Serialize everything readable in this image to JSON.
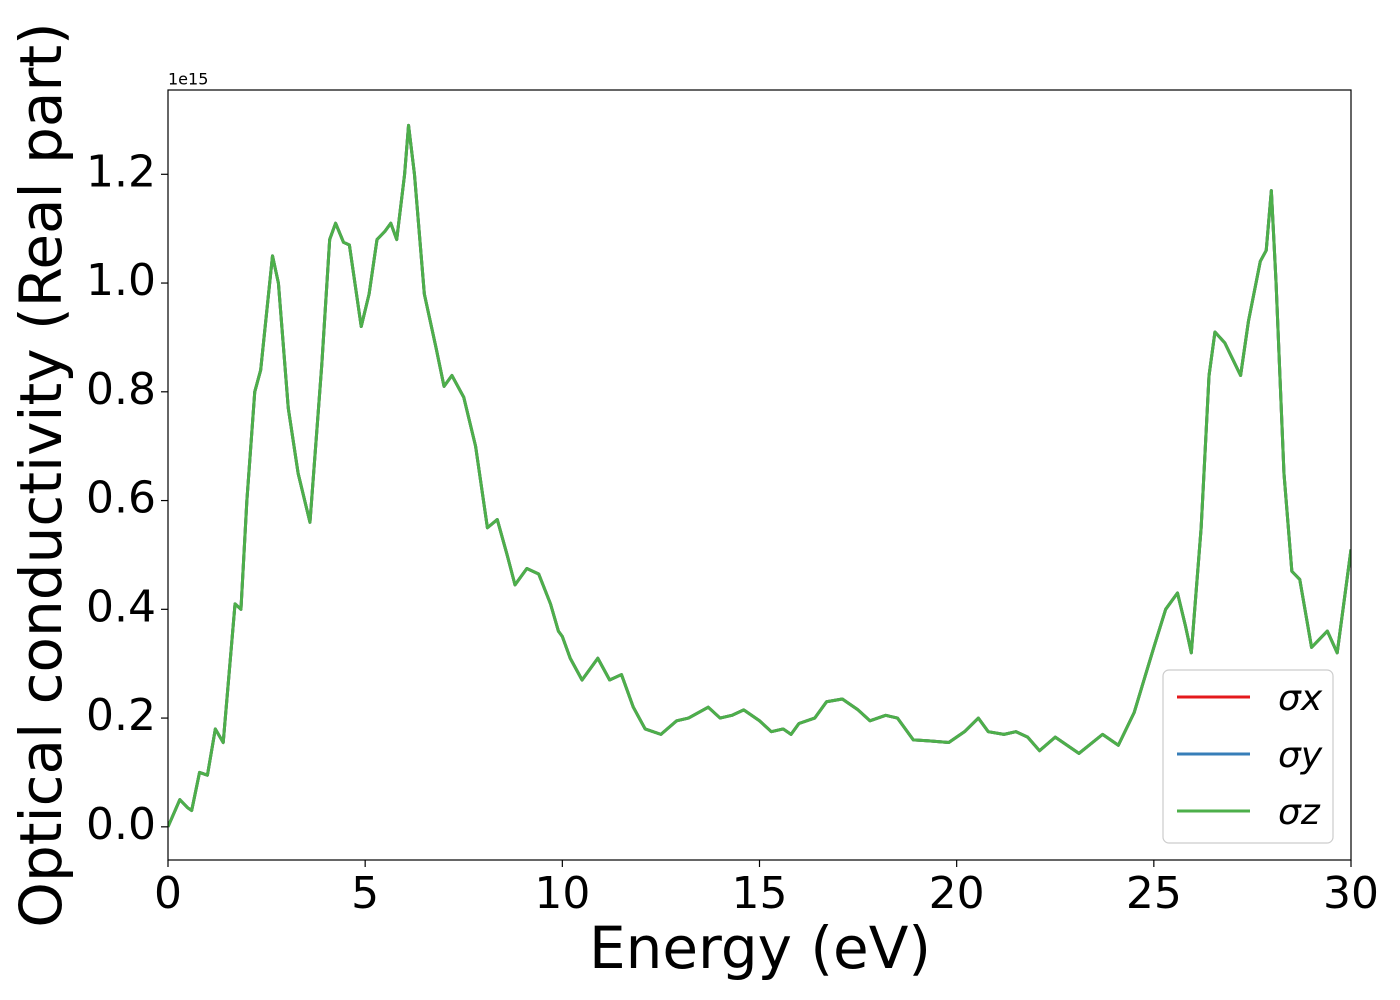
{
  "chart_data": {
    "type": "line",
    "y_label": "Optical conductivity (Real part)",
    "x_label": "Energy (eV)",
    "y_offset_label": "1e15",
    "x": [
      0,
      0.3,
      0.5,
      0.6,
      0.8,
      1.0,
      1.2,
      1.4,
      1.7,
      1.85,
      2.0,
      2.2,
      2.35,
      2.65,
      2.8,
      3.05,
      3.3,
      3.6,
      3.9,
      4.1,
      4.25,
      4.45,
      4.6,
      4.9,
      5.1,
      5.3,
      5.5,
      5.65,
      5.8,
      6.0,
      6.1,
      6.25,
      6.5,
      6.8,
      7.0,
      7.2,
      7.5,
      7.8,
      8.1,
      8.35,
      8.6,
      8.8,
      9.1,
      9.4,
      9.7,
      9.9,
      10.0,
      10.2,
      10.5,
      10.9,
      11.2,
      11.5,
      11.8,
      12.1,
      12.5,
      12.9,
      13.2,
      13.7,
      14.0,
      14.3,
      14.6,
      15.0,
      15.3,
      15.6,
      15.8,
      16.0,
      16.4,
      16.7,
      17.1,
      17.5,
      17.8,
      18.2,
      18.5,
      18.9,
      19.3,
      19.8,
      20.2,
      20.55,
      20.8,
      21.2,
      21.5,
      21.8,
      22.1,
      22.5,
      22.8,
      23.1,
      23.7,
      24.1,
      24.5,
      25.0,
      25.3,
      25.6,
      25.8,
      25.95,
      26.2,
      26.4,
      26.55,
      26.8,
      27.0,
      27.2,
      27.4,
      27.7,
      27.85,
      27.98,
      28.1,
      28.3,
      28.5,
      28.7,
      29.0,
      29.4,
      29.65,
      30.0
    ],
    "series": [
      {
        "name": "σx",
        "color": "#e41a1c",
        "values": [
          0.0,
          0.05,
          0.035,
          0.03,
          0.1,
          0.095,
          0.18,
          0.155,
          0.41,
          0.4,
          0.6,
          0.8,
          0.84,
          1.05,
          1.0,
          0.77,
          0.65,
          0.56,
          0.85,
          1.08,
          1.11,
          1.075,
          1.07,
          0.92,
          0.98,
          1.08,
          1.095,
          1.11,
          1.08,
          1.2,
          1.29,
          1.2,
          0.98,
          0.88,
          0.81,
          0.83,
          0.79,
          0.7,
          0.55,
          0.565,
          0.5,
          0.445,
          0.475,
          0.465,
          0.41,
          0.36,
          0.35,
          0.31,
          0.27,
          0.31,
          0.27,
          0.28,
          0.22,
          0.18,
          0.17,
          0.195,
          0.2,
          0.22,
          0.2,
          0.205,
          0.215,
          0.195,
          0.175,
          0.18,
          0.17,
          0.19,
          0.2,
          0.23,
          0.235,
          0.215,
          0.195,
          0.205,
          0.2,
          0.16,
          0.158,
          0.155,
          0.175,
          0.2,
          0.175,
          0.17,
          0.175,
          0.165,
          0.14,
          0.165,
          0.15,
          0.135,
          0.17,
          0.15,
          0.21,
          0.33,
          0.4,
          0.43,
          0.37,
          0.32,
          0.55,
          0.83,
          0.91,
          0.89,
          0.86,
          0.83,
          0.93,
          1.04,
          1.06,
          1.17,
          1.0,
          0.65,
          0.47,
          0.455,
          0.33,
          0.36,
          0.32,
          0.51
        ]
      },
      {
        "name": "σy",
        "color": "#377eb8",
        "values": [
          0.0,
          0.05,
          0.035,
          0.03,
          0.1,
          0.095,
          0.18,
          0.155,
          0.41,
          0.4,
          0.6,
          0.8,
          0.84,
          1.05,
          1.0,
          0.77,
          0.65,
          0.56,
          0.85,
          1.08,
          1.11,
          1.075,
          1.07,
          0.92,
          0.98,
          1.08,
          1.095,
          1.11,
          1.08,
          1.2,
          1.29,
          1.2,
          0.98,
          0.88,
          0.81,
          0.83,
          0.79,
          0.7,
          0.55,
          0.565,
          0.5,
          0.445,
          0.475,
          0.465,
          0.41,
          0.36,
          0.35,
          0.31,
          0.27,
          0.31,
          0.27,
          0.28,
          0.22,
          0.18,
          0.17,
          0.195,
          0.2,
          0.22,
          0.2,
          0.205,
          0.215,
          0.195,
          0.175,
          0.18,
          0.17,
          0.19,
          0.2,
          0.23,
          0.235,
          0.215,
          0.195,
          0.205,
          0.2,
          0.16,
          0.158,
          0.155,
          0.175,
          0.2,
          0.175,
          0.17,
          0.175,
          0.165,
          0.14,
          0.165,
          0.15,
          0.135,
          0.17,
          0.15,
          0.21,
          0.33,
          0.4,
          0.43,
          0.37,
          0.32,
          0.55,
          0.83,
          0.91,
          0.89,
          0.86,
          0.83,
          0.93,
          1.04,
          1.06,
          1.17,
          1.0,
          0.65,
          0.47,
          0.455,
          0.33,
          0.36,
          0.32,
          0.51
        ]
      },
      {
        "name": "σz",
        "color": "#4daf4a",
        "values": [
          0.0,
          0.05,
          0.035,
          0.03,
          0.1,
          0.095,
          0.18,
          0.155,
          0.41,
          0.4,
          0.6,
          0.8,
          0.84,
          1.05,
          1.0,
          0.77,
          0.65,
          0.56,
          0.85,
          1.08,
          1.11,
          1.075,
          1.07,
          0.92,
          0.98,
          1.08,
          1.095,
          1.11,
          1.08,
          1.2,
          1.29,
          1.2,
          0.98,
          0.88,
          0.81,
          0.83,
          0.79,
          0.7,
          0.55,
          0.565,
          0.5,
          0.445,
          0.475,
          0.465,
          0.41,
          0.36,
          0.35,
          0.31,
          0.27,
          0.31,
          0.27,
          0.28,
          0.22,
          0.18,
          0.17,
          0.195,
          0.2,
          0.22,
          0.2,
          0.205,
          0.215,
          0.195,
          0.175,
          0.18,
          0.17,
          0.19,
          0.2,
          0.23,
          0.235,
          0.215,
          0.195,
          0.205,
          0.2,
          0.16,
          0.158,
          0.155,
          0.175,
          0.2,
          0.175,
          0.17,
          0.175,
          0.165,
          0.14,
          0.165,
          0.15,
          0.135,
          0.17,
          0.15,
          0.21,
          0.33,
          0.4,
          0.43,
          0.37,
          0.32,
          0.55,
          0.83,
          0.91,
          0.89,
          0.86,
          0.83,
          0.93,
          1.04,
          1.06,
          1.17,
          1.0,
          0.65,
          0.47,
          0.455,
          0.33,
          0.36,
          0.32,
          0.51
        ]
      }
    ],
    "xlim": [
      0,
      30
    ],
    "xticks": [
      0,
      5,
      10,
      15,
      20,
      25,
      30
    ],
    "ylim": [
      -0.061,
      1.355
    ],
    "yticks": [
      {
        "value": 0,
        "label": "0.0"
      },
      0.2,
      0.4,
      0.6,
      0.8,
      {
        "value": 1,
        "label": "1.0"
      },
      1.2
    ],
    "legend": "lower right",
    "grid": false
  }
}
